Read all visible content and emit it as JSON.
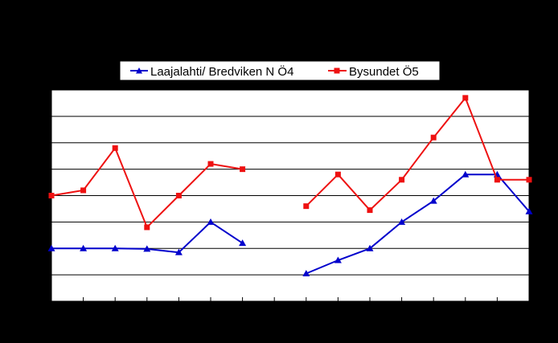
{
  "chart_data": {
    "type": "line",
    "title": "",
    "xlabel": "",
    "ylabel": "",
    "x": [
      1,
      2,
      3,
      4,
      5,
      6,
      7,
      8,
      9,
      10,
      11,
      12,
      13,
      14,
      15,
      16
    ],
    "ylim": [
      0,
      8
    ],
    "grid": true,
    "legend_position": "top",
    "series": [
      {
        "name": "Laajalahti/ Bredviken N Ö4",
        "color": "#0000CC",
        "marker": "triangle",
        "values": [
          2.0,
          2.0,
          2.0,
          1.98,
          1.85,
          3.0,
          2.2,
          null,
          1.05,
          1.55,
          2.0,
          3.0,
          3.8,
          4.8,
          4.8,
          3.4
        ]
      },
      {
        "name": "Bysundet Ö5",
        "color": "#EE1111",
        "marker": "square",
        "values": [
          4.0,
          4.2,
          5.8,
          2.8,
          4.0,
          5.2,
          5.0,
          null,
          3.6,
          4.8,
          3.45,
          4.6,
          6.2,
          7.7,
          4.6,
          4.6
        ]
      }
    ]
  }
}
